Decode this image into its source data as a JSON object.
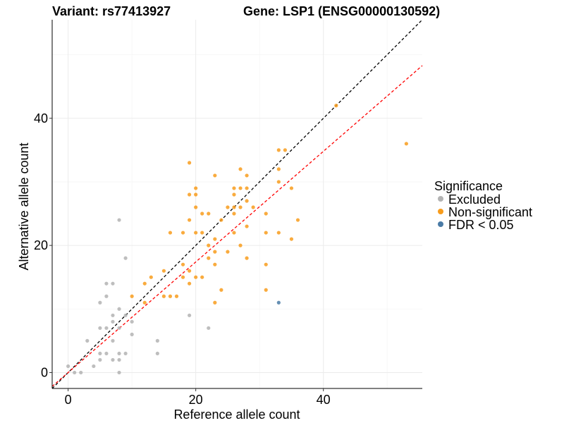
{
  "chart_data": {
    "type": "scatter",
    "title_left": "Variant: rs77413927",
    "title_right": "Gene: LSP1 (ENSG00000130592)",
    "xlabel": "Reference allele count",
    "ylabel": "Alternative allele count",
    "xlim": [
      -2.5,
      55.5
    ],
    "ylim": [
      -2.5,
      55.5
    ],
    "x_ticks": [
      0,
      20,
      40
    ],
    "y_ticks": [
      0,
      20,
      40
    ],
    "legend_title": "Significance",
    "legend_position": "right",
    "series": [
      {
        "name": "Excluded",
        "color": "#b3b3b3",
        "points": [
          [
            0,
            1
          ],
          [
            1,
            0
          ],
          [
            2,
            0
          ],
          [
            3,
            5
          ],
          [
            4,
            1
          ],
          [
            5,
            2
          ],
          [
            5,
            3
          ],
          [
            5,
            7
          ],
          [
            5,
            11
          ],
          [
            6,
            3
          ],
          [
            6,
            7
          ],
          [
            6,
            12
          ],
          [
            6,
            14
          ],
          [
            7,
            2
          ],
          [
            7,
            5
          ],
          [
            7,
            8
          ],
          [
            7,
            9
          ],
          [
            7,
            14
          ],
          [
            8,
            0
          ],
          [
            8,
            2
          ],
          [
            8,
            3
          ],
          [
            8,
            7
          ],
          [
            8,
            10
          ],
          [
            8,
            24
          ],
          [
            9,
            3
          ],
          [
            9,
            9
          ],
          [
            9,
            18
          ],
          [
            10,
            6
          ],
          [
            10,
            8
          ],
          [
            14,
            3
          ],
          [
            14,
            5
          ],
          [
            19,
            9
          ],
          [
            22,
            7
          ]
        ]
      },
      {
        "name": "Non-significant",
        "color": "#f89c1c",
        "points": [
          [
            10,
            12
          ],
          [
            12,
            11
          ],
          [
            12,
            14
          ],
          [
            13,
            15
          ],
          [
            15,
            12
          ],
          [
            15,
            16
          ],
          [
            16,
            12
          ],
          [
            16,
            22
          ],
          [
            17,
            12
          ],
          [
            18,
            15
          ],
          [
            18,
            17
          ],
          [
            18,
            22
          ],
          [
            19,
            14
          ],
          [
            19,
            16
          ],
          [
            19,
            24
          ],
          [
            19,
            28
          ],
          [
            19,
            33
          ],
          [
            20,
            15
          ],
          [
            20,
            22
          ],
          [
            20,
            26
          ],
          [
            20,
            28
          ],
          [
            20,
            29
          ],
          [
            21,
            15
          ],
          [
            21,
            22
          ],
          [
            21,
            25
          ],
          [
            22,
            18
          ],
          [
            22,
            20
          ],
          [
            22,
            25
          ],
          [
            23,
            11
          ],
          [
            23,
            17
          ],
          [
            23,
            19
          ],
          [
            23,
            21
          ],
          [
            23,
            31
          ],
          [
            24,
            13
          ],
          [
            24,
            24
          ],
          [
            25,
            19
          ],
          [
            25,
            26
          ],
          [
            26,
            22
          ],
          [
            26,
            25
          ],
          [
            26,
            26
          ],
          [
            26,
            28
          ],
          [
            26,
            29
          ],
          [
            27,
            20
          ],
          [
            27,
            26
          ],
          [
            27,
            29
          ],
          [
            27,
            32
          ],
          [
            28,
            18
          ],
          [
            28,
            23
          ],
          [
            28,
            27
          ],
          [
            28,
            29
          ],
          [
            28,
            31
          ],
          [
            29,
            26
          ],
          [
            31,
            13
          ],
          [
            31,
            17
          ],
          [
            31,
            22
          ],
          [
            31,
            25
          ],
          [
            33,
            22
          ],
          [
            33,
            30
          ],
          [
            33,
            32
          ],
          [
            33,
            35
          ],
          [
            34,
            35
          ],
          [
            35,
            21
          ],
          [
            35,
            29
          ],
          [
            36,
            24
          ],
          [
            42,
            42
          ],
          [
            53,
            36
          ]
        ]
      },
      {
        "name": "FDR < 0.05",
        "color": "#4a7ba6",
        "points": [
          [
            33,
            11
          ]
        ]
      }
    ],
    "reference_lines": [
      {
        "style": "dashed",
        "color": "#000000",
        "slope": 1.0,
        "intercept": 0
      },
      {
        "style": "dashed",
        "color": "#ff0000",
        "slope": 0.87,
        "intercept": 0
      }
    ]
  }
}
